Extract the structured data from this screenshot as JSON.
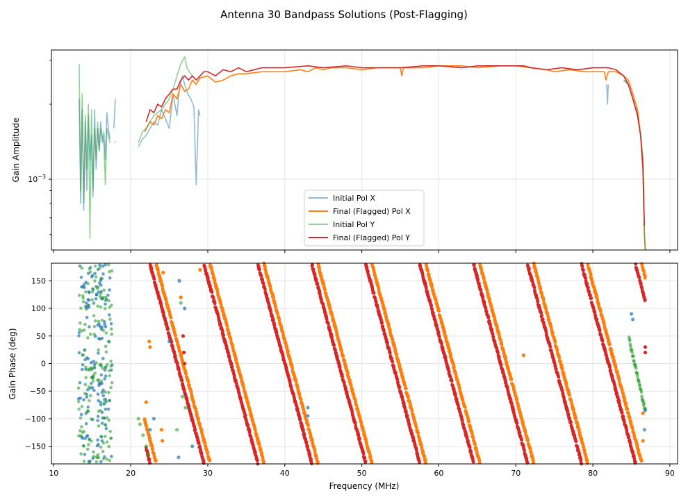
{
  "figure": {
    "title": "Antenna 30 Bandpass Solutions (Post-Flagging)"
  },
  "chart_data": [
    {
      "type": "line",
      "panel": "top",
      "yscale": "log",
      "ylabel": "Gain Amplitude",
      "xlabel": "",
      "xlim": [
        9.7,
        91.0
      ],
      "ylim": [
        0.00052,
        0.0033
      ],
      "yticks": [
        {
          "value": 0.001,
          "label": "10",
          "sup": "−3"
        }
      ],
      "grid": true,
      "legend_position": "bottom-center",
      "series": [
        {
          "name": "Initial Pol X",
          "color": "#1f77b4",
          "alpha": 0.5,
          "segments": [
            {
              "x": [
                13.3,
                13.5,
                13.7,
                13.9,
                14.1,
                14.3,
                14.5,
                14.7,
                14.9,
                15.1,
                15.3,
                15.5,
                15.7,
                15.9,
                16.1,
                16.3,
                16.5,
                16.7,
                16.9,
                17.1,
                17.3
              ],
              "y": [
                0.0021,
                0.0008,
                0.0019,
                0.00075,
                0.0017,
                0.0009,
                0.0018,
                0.0012,
                0.0015,
                0.00085,
                0.0019,
                0.0011,
                0.0016,
                0.0013,
                0.0017,
                0.0014,
                0.00155,
                0.0012,
                0.00185,
                0.0016,
                0.00145
              ]
            },
            {
              "x": [
                17.8,
                18.0
              ],
              "y": [
                0.0016,
                0.0021
              ]
            },
            {
              "x": [
                21.0,
                21.5,
                22.0,
                22.5,
                23.0,
                23.5,
                24.0,
                24.5,
                25.0,
                25.5,
                26.0,
                26.3,
                26.7,
                27.0,
                27.4,
                27.8,
                28.2,
                28.5,
                28.8,
                29.0
              ],
              "y": [
                0.00135,
                0.00145,
                0.0015,
                0.0016,
                0.0017,
                0.00165,
                0.0019,
                0.00175,
                0.0016,
                0.0022,
                0.0018,
                0.0023,
                0.0026,
                0.0024,
                0.0022,
                0.0021,
                0.00195,
                0.00095,
                0.0019,
                0.0018
              ]
            },
            {
              "x": [
                81.8,
                81.9,
                82.0
              ],
              "y": [
                0.0024,
                0.002,
                0.0024
              ]
            },
            {
              "x": [
                84.0,
                84.6,
                85.2,
                85.8,
                86.2,
                86.5,
                86.6,
                86.7,
                86.8
              ],
              "y": [
                0.0025,
                0.0024,
                0.0021,
                0.0018,
                0.0015,
                0.0012,
                0.0009,
                0.0006,
                0.00052
              ]
            }
          ]
        },
        {
          "name": "Final (Flagged) Pol X",
          "color": "#ff7f0e",
          "alpha": 1,
          "segments": [
            {
              "x": [
                21.8,
                22.5,
                23.0,
                23.5,
                24.0,
                24.5,
                25.0,
                25.5,
                26.0,
                26.5,
                27.0,
                27.5,
                28.0,
                28.5,
                29.0,
                30.0,
                31.0,
                32.0,
                33.0,
                34.0,
                35.0,
                37.0,
                40.0,
                42.0,
                43.0,
                44.0,
                45.0,
                46.0,
                48.0,
                50.0,
                52.0,
                55.0,
                55.2,
                55.4,
                58.0,
                60.0,
                63.0,
                65.0,
                68.0,
                70.0,
                72.0,
                74.0,
                75.0,
                77.0,
                79.0,
                81.0,
                81.5,
                81.7,
                82.0,
                83.0,
                84.0,
                84.6,
                85.2,
                85.8,
                86.2,
                86.5,
                86.6,
                86.7,
                86.8
              ],
              "y": [
                0.00155,
                0.0017,
                0.00165,
                0.0018,
                0.00175,
                0.0019,
                0.00185,
                0.0022,
                0.0021,
                0.0024,
                0.00225,
                0.0023,
                0.0025,
                0.0024,
                0.00255,
                0.0026,
                0.00245,
                0.0025,
                0.0026,
                0.00265,
                0.00265,
                0.0027,
                0.0027,
                0.00275,
                0.0027,
                0.0028,
                0.00275,
                0.0028,
                0.0028,
                0.00275,
                0.0028,
                0.0028,
                0.0026,
                0.0028,
                0.0028,
                0.00285,
                0.00285,
                0.0028,
                0.00285,
                0.00285,
                0.0028,
                0.00275,
                0.0027,
                0.00275,
                0.0027,
                0.0027,
                0.0027,
                0.0025,
                0.0027,
                0.0027,
                0.0026,
                0.0025,
                0.0022,
                0.0019,
                0.0015,
                0.0012,
                0.0009,
                0.0006,
                0.00052
              ]
            }
          ]
        },
        {
          "name": "Initial Pol Y",
          "color": "#2ca02c",
          "alpha": 0.5,
          "segments": [
            {
              "x": [
                13.3,
                13.5,
                13.7,
                13.9,
                14.1,
                14.3,
                14.5,
                14.7,
                14.9,
                15.1,
                15.3,
                15.5,
                15.7,
                15.9,
                16.1,
                16.3,
                16.5,
                16.7,
                16.9,
                17.1,
                17.3
              ],
              "y": [
                0.0029,
                0.0009,
                0.0022,
                0.0008,
                0.0018,
                0.0011,
                0.002,
                0.00058,
                0.0019,
                0.0009,
                0.0016,
                0.0012,
                0.0017,
                0.0013,
                0.0016,
                0.0015,
                0.0014,
                0.00095,
                0.0016,
                0.0015,
                0.0014
              ]
            },
            {
              "x": [
                17.9,
                18.0
              ],
              "y": [
                0.0014,
                0.00142
              ]
            },
            {
              "x": [
                21.0,
                21.5,
                22.0,
                22.5,
                23.0,
                23.5,
                24.0,
                24.5,
                25.0,
                25.5,
                26.0,
                26.5,
                27.0,
                27.3,
                27.6,
                28.0
              ],
              "y": [
                0.0014,
                0.00155,
                0.0016,
                0.0017,
                0.0018,
                0.00185,
                0.0019,
                0.002,
                0.0021,
                0.0023,
                0.0026,
                0.0029,
                0.0031,
                0.0028,
                0.0027,
                0.0026
              ]
            },
            {
              "x": [
                84.0,
                84.6,
                85.2,
                85.8,
                86.2,
                86.5,
                86.6,
                86.7,
                86.8
              ],
              "y": [
                0.0025,
                0.0024,
                0.0021,
                0.0018,
                0.0015,
                0.0012,
                0.0009,
                0.0006,
                0.00052
              ]
            }
          ]
        },
        {
          "name": "Final (Flagged) Pol Y",
          "color": "#d62728",
          "alpha": 1,
          "segments": [
            {
              "x": [
                22.0,
                22.5,
                23.0,
                23.5,
                24.0,
                24.5,
                25.0,
                25.5,
                26.0,
                26.5,
                27.0,
                27.5,
                28.0,
                28.5,
                29.0,
                29.5,
                30.0,
                31.0,
                32.0,
                33.0,
                34.0,
                35.0,
                37.0,
                40.0,
                43.0,
                45.0,
                48.0,
                50.0,
                53.0,
                55.0,
                58.0,
                60.0,
                63.0,
                65.0,
                68.0,
                70.0,
                71.0,
                72.0,
                74.0,
                76.0,
                78.0,
                80.0,
                82.0,
                83.0,
                84.0,
                84.6,
                85.2,
                85.8,
                86.2,
                86.5,
                86.6,
                86.7
              ],
              "y": [
                0.0017,
                0.0019,
                0.00185,
                0.002,
                0.00195,
                0.0021,
                0.0022,
                0.0023,
                0.0023,
                0.0025,
                0.0026,
                0.0025,
                0.0026,
                0.0025,
                0.0026,
                0.0027,
                0.0027,
                0.0026,
                0.00275,
                0.0027,
                0.0028,
                0.0027,
                0.0028,
                0.0028,
                0.00285,
                0.0028,
                0.00285,
                0.0028,
                0.0028,
                0.0028,
                0.00285,
                0.00285,
                0.0028,
                0.00285,
                0.00285,
                0.00285,
                0.00285,
                0.0028,
                0.00275,
                0.0028,
                0.00275,
                0.0028,
                0.0028,
                0.00275,
                0.0026,
                0.0024,
                0.0021,
                0.0018,
                0.0015,
                0.0011,
                0.0008,
                0.00065
              ]
            }
          ]
        }
      ]
    },
    {
      "type": "scatter",
      "panel": "bottom",
      "ylabel": "Gain Phase (deg)",
      "xlabel": "Frequency (MHz)",
      "xlim": [
        9.7,
        91.0
      ],
      "ylim": [
        -182,
        182
      ],
      "xticks": [
        10,
        20,
        30,
        40,
        50,
        60,
        70,
        80,
        90
      ],
      "yticks": [
        -150,
        -100,
        -50,
        0,
        50,
        100,
        150
      ],
      "grid": true,
      "series": [
        {
          "name": "Initial Pol X",
          "color": "#1f77b4",
          "alpha": 0.7,
          "marker": "dot",
          "noise_range": [
            13.2,
            17.6
          ],
          "points": [
            [
              22.5,
              -120
            ],
            [
              23.0,
              -100
            ],
            [
              25.0,
              40
            ],
            [
              26.2,
              -170
            ],
            [
              26.5,
              120
            ],
            [
              26.3,
              150
            ],
            [
              27.0,
              100
            ],
            [
              28.0,
              -150
            ],
            [
              43.0,
              -80
            ],
            [
              43.0,
              -95
            ],
            [
              85.0,
              90
            ],
            [
              85.2,
              80
            ],
            [
              86.7,
              -120
            ],
            [
              86.8,
              -85
            ]
          ]
        },
        {
          "name": "Final (Flagged) Pol X",
          "color": "#ff7f0e",
          "alpha": 1,
          "marker": "dot",
          "slope_deg_per_mhz": -51.4,
          "wrap_anchor": 30.3,
          "range": [
            21.8,
            86.8
          ],
          "points": [
            [
              22.4,
              40
            ],
            [
              22.5,
              30
            ],
            [
              22.0,
              -70
            ],
            [
              24.0,
              -120
            ],
            [
              24.1,
              -140
            ],
            [
              24.2,
              165
            ],
            [
              26.5,
              120
            ],
            [
              29.0,
              170
            ],
            [
              43.0,
              -110
            ],
            [
              71.0,
              15
            ],
            [
              86.5,
              -90
            ],
            [
              86.5,
              -140
            ]
          ]
        },
        {
          "name": "Initial Pol Y",
          "color": "#2ca02c",
          "alpha": 0.6,
          "marker": "dot",
          "noise_range": [
            13.2,
            17.6
          ],
          "points": [
            [
              21.0,
              -100
            ],
            [
              21.2,
              -110
            ],
            [
              21.6,
              -130
            ],
            [
              22.0,
              -150
            ],
            [
              22.3,
              -165
            ],
            [
              26.5,
              110
            ],
            [
              26.0,
              -120
            ],
            [
              26.7,
              -60
            ],
            [
              27.1,
              -80
            ]
          ]
        },
        {
          "name": "Final (Flagged) Pol Y",
          "color": "#d62728",
          "alpha": 1,
          "marker": "dot",
          "slope_deg_per_mhz": -51.4,
          "wrap_anchor": 29.5,
          "range": [
            22.0,
            86.8
          ],
          "points": [
            [
              26.8,
              50
            ],
            [
              26.9,
              20
            ],
            [
              27.0,
              0
            ],
            [
              86.8,
              30
            ],
            [
              86.8,
              20
            ]
          ]
        }
      ]
    }
  ],
  "legend": {
    "items": [
      {
        "label": "Initial Pol X",
        "color": "#1f77b4",
        "alpha": 0.5
      },
      {
        "label": "Final (Flagged) Pol X",
        "color": "#ff7f0e",
        "alpha": 1
      },
      {
        "label": "Initial Pol Y",
        "color": "#2ca02c",
        "alpha": 0.5
      },
      {
        "label": "Final (Flagged) Pol Y",
        "color": "#d62728",
        "alpha": 1
      }
    ]
  }
}
